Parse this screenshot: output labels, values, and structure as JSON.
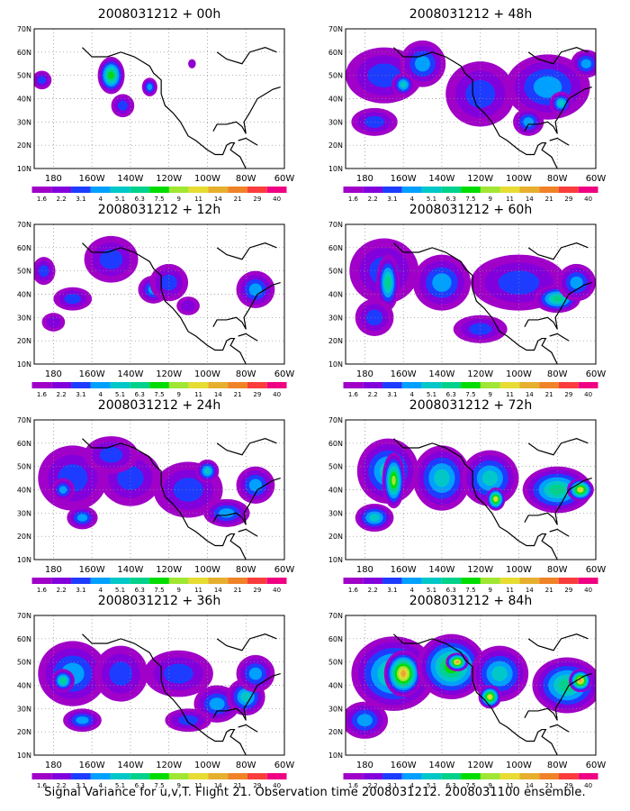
{
  "chart_data": {
    "type": "heatmap",
    "panel_titles": [
      "2008031212 + 00h",
      "2008031212 + 48h",
      "2008031212 + 12h",
      "2008031212 + 60h",
      "2008031212 + 24h",
      "2008031212 + 72h",
      "2008031212 + 36h",
      "2008031212 + 84h"
    ],
    "lon_ticks": [
      "180",
      "160W",
      "140W",
      "120W",
      "100W",
      "80W",
      "60W"
    ],
    "lat_ticks": [
      "10N",
      "20N",
      "30N",
      "40N",
      "50N",
      "60N",
      "70N"
    ],
    "lon_range": [
      -190,
      -60
    ],
    "lat_range": [
      10,
      70
    ],
    "colorbar_labels": [
      "1.6",
      "2.2",
      "3.1",
      "4",
      "5.1",
      "6.3",
      "7.5",
      "9",
      "11",
      "14",
      "21",
      "29",
      "40"
    ],
    "colorbar_colors": [
      "#a000c8",
      "#8200dc",
      "#1e3cff",
      "#00a0ff",
      "#00c8c8",
      "#00d28c",
      "#00dc00",
      "#a0e632",
      "#e6dc32",
      "#e6af2d",
      "#f08228",
      "#fa3c3c",
      "#f00082"
    ],
    "panels": [
      {
        "lead": "00h",
        "blobs": [
          [
            -150,
            50,
            7,
            8,
            6
          ],
          [
            -186,
            48,
            5,
            4,
            2
          ],
          [
            -144,
            37,
            6,
            5,
            2
          ],
          [
            -130,
            45,
            4,
            4,
            3
          ],
          [
            -108,
            55,
            2,
            2,
            1
          ]
        ]
      },
      {
        "lead": "48h",
        "blobs": [
          [
            -170,
            50,
            20,
            12,
            2
          ],
          [
            -150,
            55,
            12,
            10,
            3
          ],
          [
            -160,
            46,
            6,
            5,
            4
          ],
          [
            -120,
            42,
            18,
            14,
            2
          ],
          [
            -85,
            45,
            22,
            14,
            3
          ],
          [
            -78,
            38,
            6,
            5,
            4
          ],
          [
            -95,
            30,
            8,
            6,
            3
          ],
          [
            -175,
            30,
            12,
            6,
            2
          ],
          [
            -65,
            55,
            8,
            6,
            3
          ]
        ]
      },
      {
        "lead": "12h",
        "blobs": [
          [
            -185,
            50,
            6,
            6,
            2
          ],
          [
            -150,
            55,
            14,
            10,
            2
          ],
          [
            -128,
            42,
            8,
            6,
            3
          ],
          [
            -120,
            45,
            10,
            8,
            2
          ],
          [
            -75,
            42,
            10,
            8,
            3
          ],
          [
            -170,
            38,
            10,
            5,
            2
          ],
          [
            -110,
            35,
            6,
            4,
            1
          ],
          [
            -180,
            28,
            6,
            4,
            1
          ]
        ]
      },
      {
        "lead": "60h",
        "blobs": [
          [
            -170,
            50,
            18,
            14,
            2
          ],
          [
            -168,
            45,
            6,
            12,
            5
          ],
          [
            -140,
            45,
            15,
            12,
            3
          ],
          [
            -100,
            45,
            25,
            12,
            2
          ],
          [
            -80,
            38,
            12,
            6,
            5
          ],
          [
            -70,
            45,
            10,
            8,
            3
          ],
          [
            -175,
            30,
            10,
            8,
            2
          ],
          [
            -120,
            25,
            14,
            6,
            2
          ]
        ]
      },
      {
        "lead": "24h",
        "blobs": [
          [
            -170,
            45,
            18,
            14,
            2
          ],
          [
            -175,
            40,
            6,
            5,
            3
          ],
          [
            -140,
            45,
            16,
            12,
            2
          ],
          [
            -150,
            55,
            14,
            8,
            2
          ],
          [
            -110,
            40,
            18,
            12,
            2
          ],
          [
            -90,
            30,
            12,
            6,
            3
          ],
          [
            -75,
            42,
            10,
            8,
            3
          ],
          [
            -165,
            28,
            8,
            5,
            3
          ],
          [
            -100,
            48,
            6,
            5,
            4
          ]
        ]
      },
      {
        "lead": "72h",
        "blobs": [
          [
            -168,
            48,
            16,
            14,
            4
          ],
          [
            -165,
            44,
            6,
            12,
            7
          ],
          [
            -140,
            45,
            15,
            14,
            4
          ],
          [
            -115,
            45,
            15,
            12,
            4
          ],
          [
            -112,
            36,
            5,
            5,
            8
          ],
          [
            -80,
            40,
            18,
            10,
            5
          ],
          [
            -68,
            40,
            7,
            5,
            8
          ],
          [
            -175,
            28,
            10,
            6,
            4
          ]
        ]
      },
      {
        "lead": "36h",
        "blobs": [
          [
            -170,
            45,
            18,
            14,
            3
          ],
          [
            -175,
            42,
            6,
            5,
            5
          ],
          [
            -145,
            45,
            14,
            12,
            2
          ],
          [
            -115,
            45,
            18,
            10,
            2
          ],
          [
            -95,
            32,
            12,
            8,
            3
          ],
          [
            -80,
            35,
            10,
            8,
            4
          ],
          [
            -75,
            45,
            10,
            8,
            3
          ],
          [
            -165,
            25,
            10,
            5,
            3
          ],
          [
            -110,
            25,
            12,
            5,
            2
          ]
        ]
      },
      {
        "lead": "84h",
        "blobs": [
          [
            -165,
            45,
            22,
            16,
            5
          ],
          [
            -160,
            45,
            10,
            10,
            9
          ],
          [
            -135,
            48,
            18,
            14,
            6
          ],
          [
            -132,
            50,
            6,
            4,
            9
          ],
          [
            -110,
            45,
            15,
            12,
            4
          ],
          [
            -115,
            35,
            6,
            5,
            8
          ],
          [
            -75,
            40,
            18,
            12,
            5
          ],
          [
            -68,
            42,
            6,
            5,
            9
          ],
          [
            -180,
            25,
            12,
            8,
            3
          ]
        ]
      }
    ],
    "caption": "Signal Variance for u,v,T. Flight 21. Observation time 2008031212. 2008031100 ensemble."
  }
}
